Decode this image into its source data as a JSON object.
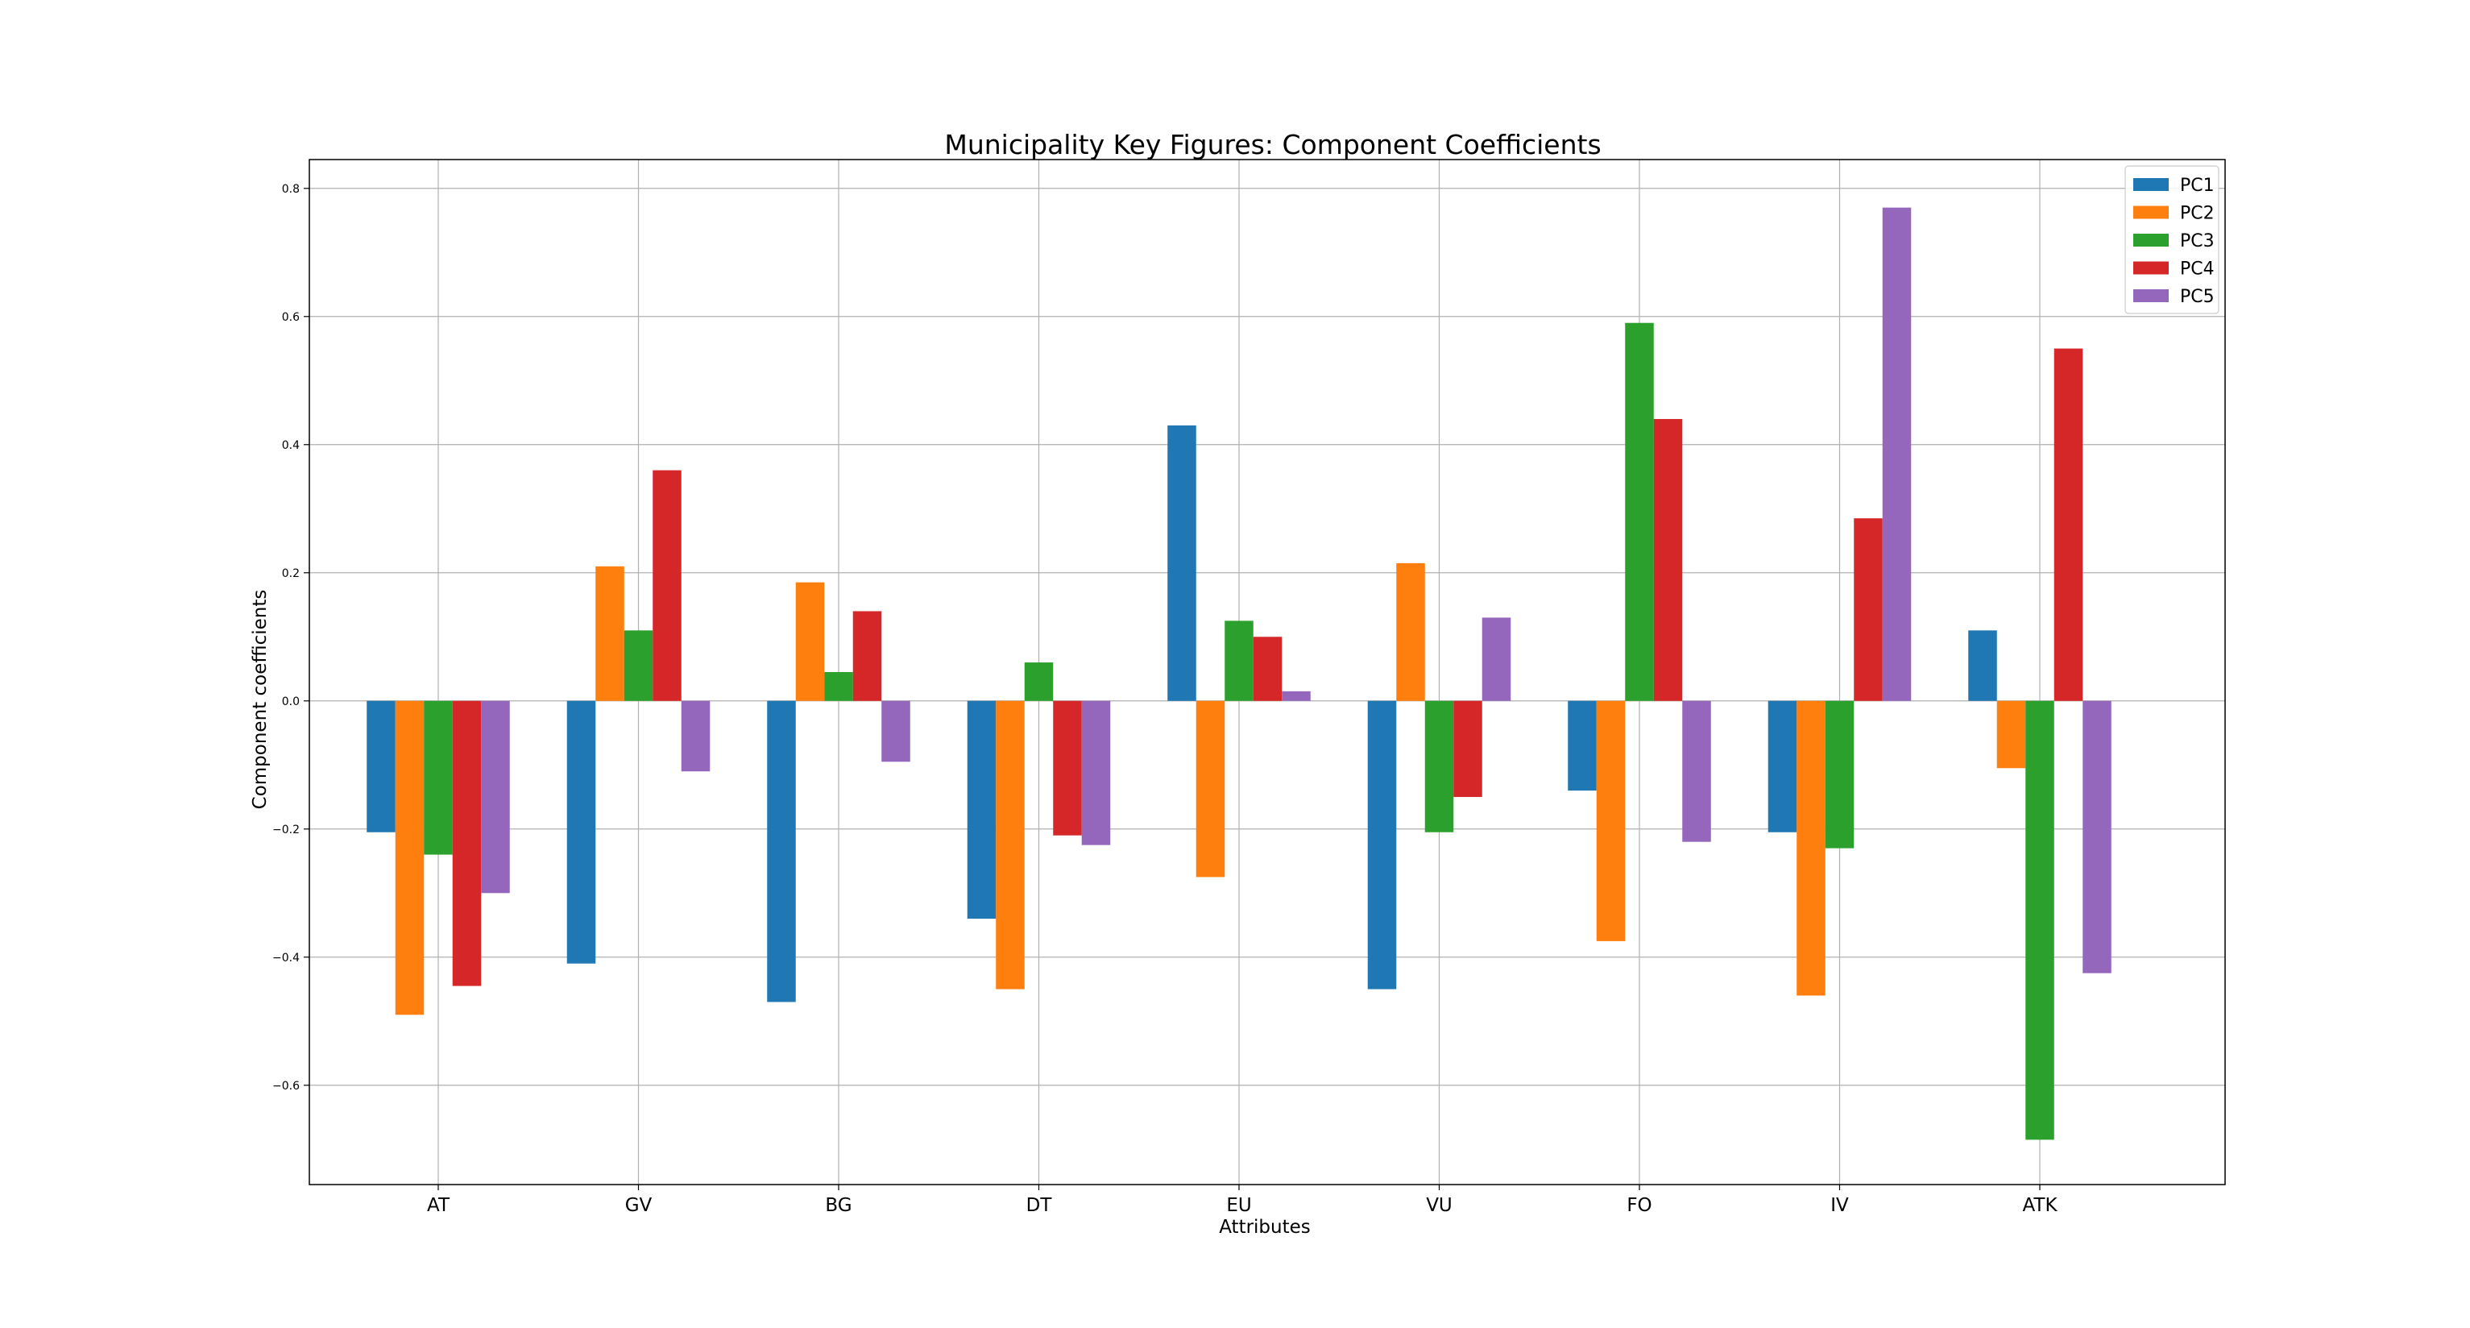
{
  "chart_data": {
    "type": "bar",
    "title": "Municipality Key Figures: Component Coefficients",
    "xlabel": "Attributes",
    "ylabel": "Component coefficients",
    "categories": [
      "AT",
      "GV",
      "BG",
      "DT",
      "EU",
      "VU",
      "FO",
      "IV",
      "ATK"
    ],
    "yticks": [
      -0.6,
      -0.4,
      -0.2,
      0.0,
      0.2,
      0.4,
      0.6,
      0.8
    ],
    "ytick_labels": [
      "−0.6",
      "−0.4",
      "−0.2",
      "0.0",
      "0.2",
      "0.4",
      "0.6",
      "0.8"
    ],
    "ylim": [
      -0.755,
      0.845
    ],
    "grid": true,
    "legend_position": "top-right",
    "series": [
      {
        "name": "PC1",
        "color": "#1f77b4",
        "values": [
          -0.205,
          -0.41,
          -0.47,
          -0.34,
          0.43,
          -0.45,
          -0.14,
          -0.205,
          0.11
        ]
      },
      {
        "name": "PC2",
        "color": "#ff7f0e",
        "values": [
          -0.49,
          0.21,
          0.185,
          -0.45,
          -0.275,
          0.215,
          -0.375,
          -0.46,
          -0.105
        ]
      },
      {
        "name": "PC3",
        "color": "#2ca02c",
        "values": [
          -0.24,
          0.11,
          0.045,
          0.06,
          0.125,
          -0.205,
          0.59,
          -0.23,
          -0.685
        ]
      },
      {
        "name": "PC4",
        "color": "#d62728",
        "values": [
          -0.445,
          0.36,
          0.14,
          -0.21,
          0.1,
          -0.15,
          0.44,
          0.285,
          0.55
        ]
      },
      {
        "name": "PC5",
        "color": "#9467bd",
        "values": [
          -0.3,
          -0.11,
          -0.095,
          -0.225,
          0.015,
          0.13,
          -0.22,
          0.77,
          -0.425
        ]
      }
    ]
  }
}
